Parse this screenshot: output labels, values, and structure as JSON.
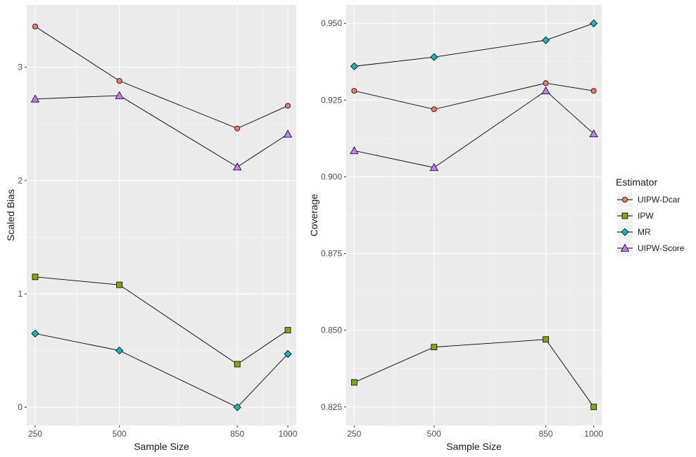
{
  "chart_data": [
    {
      "type": "line",
      "xlabel": "Sample Size",
      "ylabel": "Scaled Bias",
      "x": [
        250,
        500,
        850,
        1000
      ],
      "xticks": [
        250,
        500,
        850,
        1000
      ],
      "xlim": [
        225,
        1025
      ],
      "yticks": [
        0,
        1,
        2,
        3
      ],
      "ylim": [
        -0.16,
        3.55
      ],
      "series": [
        {
          "name": "UIPW-Dcar",
          "values": [
            3.36,
            2.88,
            2.46,
            2.66
          ]
        },
        {
          "name": "IPW",
          "values": [
            1.15,
            1.08,
            0.38,
            0.68
          ]
        },
        {
          "name": "MR",
          "values": [
            0.65,
            0.5,
            0.0,
            0.47
          ]
        },
        {
          "name": "UIPW-Score",
          "values": [
            2.72,
            2.75,
            2.12,
            2.41
          ]
        }
      ]
    },
    {
      "type": "line",
      "xlabel": "Sample Size",
      "ylabel": "Coverage",
      "x": [
        250,
        500,
        850,
        1000
      ],
      "xticks": [
        250,
        500,
        850,
        1000
      ],
      "xlim": [
        225,
        1025
      ],
      "yticks": [
        0.825,
        0.85,
        0.875,
        0.9,
        0.925,
        0.95
      ],
      "ylim": [
        0.819,
        0.956
      ],
      "series": [
        {
          "name": "UIPW-Dcar",
          "values": [
            0.928,
            0.922,
            0.9305,
            0.928
          ]
        },
        {
          "name": "IPW",
          "values": [
            0.833,
            0.8445,
            0.847,
            0.825
          ]
        },
        {
          "name": "MR",
          "values": [
            0.936,
            0.939,
            0.9445,
            0.95
          ]
        },
        {
          "name": "UIPW-Score",
          "values": [
            0.9085,
            0.903,
            0.928,
            0.914
          ]
        }
      ]
    }
  ],
  "legend": {
    "title": "Estimator",
    "items": [
      {
        "label": "UIPW-Dcar",
        "shape": "circle",
        "color": "#F8766D"
      },
      {
        "label": "IPW",
        "shape": "square",
        "color": "#7CAE00"
      },
      {
        "label": "MR",
        "shape": "diamond",
        "color": "#00BFC4"
      },
      {
        "label": "UIPW-Score",
        "shape": "triangle",
        "color": "#C77CFF"
      }
    ]
  },
  "colors": {
    "panel_background": "#EBEBEB",
    "grid_major": "#FFFFFF",
    "line": "#000000"
  }
}
